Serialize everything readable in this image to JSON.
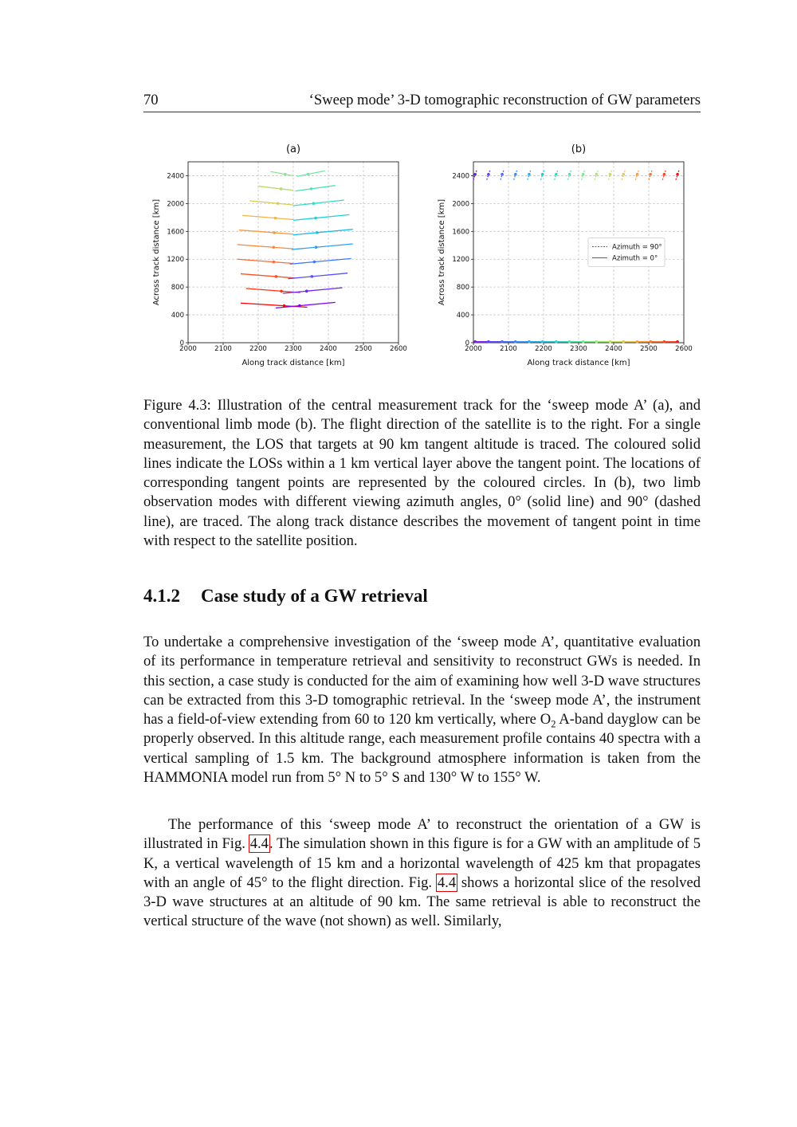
{
  "header": {
    "page_number": "70",
    "title": "‘Sweep mode’ 3-D tomographic reconstruction of GW parameters"
  },
  "chart_data": [
    {
      "type": "line",
      "title": "(a)",
      "x_label": "Along track distance [km]",
      "y_label": "Across track distance [km]",
      "xlim": [
        2000,
        2600
      ],
      "xticks": [
        2000,
        2100,
        2200,
        2300,
        2400,
        2500,
        2600
      ],
      "ylim": [
        0,
        2600
      ],
      "yticks": [
        0,
        400,
        800,
        1200,
        1600,
        2000,
        2400
      ],
      "grid": true,
      "series": [
        {
          "color": "#ff0000",
          "x": [
            2150,
            2340
          ],
          "values": [
            570,
            510
          ]
        },
        {
          "color": "#ff3010",
          "x": [
            2165,
            2320
          ],
          "values": [
            780,
            720
          ]
        },
        {
          "color": "#ff5020",
          "x": [
            2150,
            2305
          ],
          "values": [
            990,
            930
          ]
        },
        {
          "color": "#ff6a30",
          "x": [
            2140,
            2300
          ],
          "values": [
            1200,
            1140
          ]
        },
        {
          "color": "#ff8438",
          "x": [
            2140,
            2300
          ],
          "values": [
            1410,
            1350
          ]
        },
        {
          "color": "#f89c40",
          "x": [
            2145,
            2300
          ],
          "values": [
            1620,
            1560
          ]
        },
        {
          "color": "#eeb448",
          "x": [
            2155,
            2300
          ],
          "values": [
            1830,
            1770
          ]
        },
        {
          "color": "#d8cc58",
          "x": [
            2175,
            2300
          ],
          "values": [
            2040,
            1980
          ]
        },
        {
          "color": "#b8dc70",
          "x": [
            2200,
            2300
          ],
          "values": [
            2250,
            2190
          ]
        },
        {
          "color": "#90e490",
          "x": [
            2235,
            2300
          ],
          "values": [
            2460,
            2400
          ]
        },
        {
          "color": "#8000ff",
          "x": [
            2250,
            2420
          ],
          "values": [
            500,
            580
          ]
        },
        {
          "color": "#6a28ff",
          "x": [
            2270,
            2440
          ],
          "values": [
            710,
            790
          ]
        },
        {
          "color": "#5450ff",
          "x": [
            2285,
            2455
          ],
          "values": [
            920,
            1000
          ]
        },
        {
          "color": "#3e78ff",
          "x": [
            2290,
            2465
          ],
          "values": [
            1130,
            1210
          ]
        },
        {
          "color": "#2ca0f8",
          "x": [
            2295,
            2470
          ],
          "values": [
            1340,
            1420
          ]
        },
        {
          "color": "#20bce8",
          "x": [
            2300,
            2470
          ],
          "values": [
            1550,
            1630
          ]
        },
        {
          "color": "#24d0d8",
          "x": [
            2300,
            2460
          ],
          "values": [
            1760,
            1840
          ]
        },
        {
          "color": "#38dcc4",
          "x": [
            2300,
            2445
          ],
          "values": [
            1970,
            2050
          ]
        },
        {
          "color": "#50e4b0",
          "x": [
            2305,
            2420
          ],
          "values": [
            2180,
            2260
          ]
        },
        {
          "color": "#68eca0",
          "x": [
            2310,
            2390
          ],
          "values": [
            2390,
            2470
          ]
        }
      ],
      "points": {
        "x": [
          2274,
          2266,
          2251,
          2244,
          2244,
          2246,
          2249,
          2256,
          2265,
          2277,
          2318,
          2338,
          2353,
          2360,
          2365,
          2368,
          2364,
          2358,
          2351,
          2342
        ],
        "values": [
          531,
          741,
          951,
          1161,
          1371,
          1581,
          1791,
          2001,
          2211,
          2421,
          532,
          742,
          952,
          1162,
          1372,
          1582,
          1792,
          2002,
          2212,
          2422
        ],
        "colors": [
          "#ff0000",
          "#ff3010",
          "#ff5020",
          "#ff6a30",
          "#ff8438",
          "#f89c40",
          "#eeb448",
          "#d8cc58",
          "#b8dc70",
          "#90e490",
          "#8000ff",
          "#6a28ff",
          "#5450ff",
          "#3e78ff",
          "#2ca0f8",
          "#20bce8",
          "#24d0d8",
          "#38dcc4",
          "#50e4b0",
          "#68eca0"
        ]
      }
    },
    {
      "type": "line",
      "title": "(b)",
      "x_label": "Along track distance [km]",
      "y_label": "Across track distance [km]",
      "xlim": [
        2000,
        2600
      ],
      "xticks": [
        2000,
        2100,
        2200,
        2300,
        2400,
        2500,
        2600
      ],
      "ylim": [
        0,
        2600
      ],
      "yticks": [
        0,
        400,
        800,
        1200,
        1600,
        2000,
        2400
      ],
      "grid": true,
      "legend": "center right",
      "series": [
        {
          "name": "Azimuth = 90°",
          "color": "#c8306c",
          "dash": true,
          "x": [
            2000,
            2010,
            null,
            2038,
            2048,
            null,
            2077,
            2087,
            null,
            2115,
            2125,
            null,
            2154,
            2164,
            null,
            2192,
            2202,
            null,
            2231,
            2241,
            null,
            2269,
            2279,
            null,
            2308,
            2318,
            null,
            2346,
            2356,
            null,
            2385,
            2395,
            null,
            2423,
            2433,
            null,
            2462,
            2472,
            null,
            2500,
            2510,
            null,
            2539,
            2549,
            null,
            2577,
            2587
          ],
          "values": [
            2340,
            2490,
            null,
            2340,
            2490,
            null,
            2340,
            2490,
            null,
            2340,
            2490,
            null,
            2340,
            2490,
            null,
            2340,
            2490,
            null,
            2340,
            2490,
            null,
            2340,
            2490,
            null,
            2340,
            2490,
            null,
            2340,
            2490,
            null,
            2340,
            2490,
            null,
            2340,
            2490,
            null,
            2340,
            2490,
            null,
            2340,
            2490,
            null,
            2340,
            2490,
            null,
            2340,
            2490
          ],
          "colors": [
            "#7a1ff0",
            "#7a1ff0",
            null,
            "#6040ff",
            "#6040ff",
            null,
            "#4a6cff",
            "#4a6cff",
            null,
            "#3890ff",
            "#3890ff",
            null,
            "#28b0f0",
            "#28b0f0",
            null,
            "#20c8e0",
            "#20c8e0",
            null,
            "#30dcc8",
            "#30dcc8",
            null,
            "#50e8a8",
            "#50e8a8",
            null,
            "#78f088",
            "#78f088",
            null,
            "#a0f070",
            "#a0f070",
            null,
            "#c8e060",
            "#c8e060",
            null,
            "#e8c850",
            "#e8c850",
            null,
            "#ffa040",
            "#ffa040",
            null,
            "#ff7830",
            "#ff7830",
            null,
            "#ff4820",
            "#ff4820",
            null,
            "#ff1010",
            "#ff1010"
          ]
        },
        {
          "name": "Azimuth = 0°",
          "color": "#9030d0",
          "x": [
            2005,
            2043,
            2082,
            2120,
            2159,
            2197,
            2236,
            2274,
            2313,
            2351,
            2390,
            2428,
            2467,
            2505,
            2544,
            2582
          ],
          "values": [
            15,
            15,
            15,
            15,
            15,
            15,
            15,
            15,
            15,
            15,
            15,
            15,
            15,
            15,
            15,
            15
          ],
          "colors": [
            "#7a1ff0",
            "#6040ff",
            "#4a6cff",
            "#3890ff",
            "#28b0f0",
            "#20c8e0",
            "#30dcc8",
            "#50e8a8",
            "#78f088",
            "#a0f070",
            "#c8e060",
            "#e8c850",
            "#ffa040",
            "#ff7830",
            "#ff4820",
            "#ff1010"
          ]
        }
      ],
      "points": {
        "x": [
          2005,
          2043,
          2082,
          2120,
          2159,
          2197,
          2236,
          2274,
          2313,
          2351,
          2390,
          2428,
          2467,
          2505,
          2544,
          2582,
          2005,
          2043,
          2082,
          2120,
          2159,
          2197,
          2236,
          2274,
          2313,
          2351,
          2390,
          2428,
          2467,
          2505,
          2544,
          2582
        ],
        "values": [
          2420,
          2420,
          2420,
          2420,
          2420,
          2420,
          2420,
          2420,
          2420,
          2420,
          2420,
          2420,
          2420,
          2420,
          2420,
          2420,
          15,
          15,
          15,
          15,
          15,
          15,
          15,
          15,
          15,
          15,
          15,
          15,
          15,
          15,
          15,
          15
        ],
        "colors": [
          "#7a1ff0",
          "#6040ff",
          "#4a6cff",
          "#3890ff",
          "#28b0f0",
          "#20c8e0",
          "#30dcc8",
          "#50e8a8",
          "#78f088",
          "#a0f070",
          "#c8e060",
          "#e8c850",
          "#ffa040",
          "#ff7830",
          "#ff4820",
          "#ff1010",
          "#7a1ff0",
          "#6040ff",
          "#4a6cff",
          "#3890ff",
          "#28b0f0",
          "#20c8e0",
          "#30dcc8",
          "#50e8a8",
          "#78f088",
          "#a0f070",
          "#c8e060",
          "#e8c850",
          "#ffa040",
          "#ff7830",
          "#ff4820",
          "#ff1010"
        ]
      }
    }
  ],
  "caption": "Figure 4.3: Illustration of the central measurement track for the ‘sweep mode A’ (a), and conventional limb mode (b). The flight direction of the satellite is to the right. For a single measurement, the LOS that targets at 90 km tangent altitude is traced. The coloured solid lines indicate the LOSs within a 1 km vertical layer above the tangent point. The locations of corresponding tangent points are represented by the coloured circles. In (b), two limb observation modes with different viewing azimuth angles, 0° (solid line) and 90° (dashed line), are traced. The along track distance describes the movement of tangent point in time with respect to the satellite position.",
  "section": {
    "number": "4.1.2",
    "title": "Case study of a GW retrieval"
  },
  "paragraphs": [
    [
      "To undertake a comprehensive investigation of the ‘sweep mode A’, quantitative evaluation of its performance in temperature retrieval and sensitivity to reconstruct GWs is needed. In this section, a case study is conducted for the aim of examining how well 3-D wave structures can be extracted from this 3-D tomographic retrieval. In the ‘sweep mode A’, the instrument has a field-of-view extending from 60 to 120 km vertically, where O",
      "2",
      " A-band dayglow can be properly observed. In this altitude range, each measurement profile contains 40 spectra with a vertical sampling of 1.5 km. The background atmosphere information is taken from the HAMMONIA model run from 5° N to 5° S and 130° W to 155° W."
    ],
    [
      "The performance of this ‘sweep mode A’ to reconstruct the orientation of a GW is illustrated in Fig. ",
      "4.4",
      ". The simulation shown in this figure is for a GW with an amplitude of 5 K, a vertical wavelength of 15 km and a horizontal wavelength of 425 km that propagates with an angle of 45° to the flight direction. Fig. ",
      "4.4",
      " shows a horizontal slice of the resolved 3-D wave structures at an altitude of 90 km. The same retrieval is able to reconstruct the vertical structure of the wave (not shown) as well. Similarly,"
    ]
  ]
}
